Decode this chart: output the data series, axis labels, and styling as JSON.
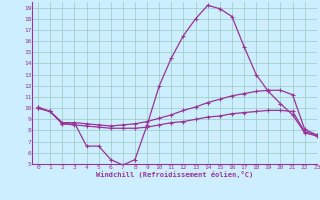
{
  "line1_x": [
    0,
    1,
    2,
    3,
    4,
    5,
    6,
    7,
    8,
    9,
    10,
    11,
    12,
    13,
    14,
    15,
    16,
    17,
    18,
    19,
    20,
    21,
    22,
    23
  ],
  "line1_y": [
    10.1,
    9.7,
    8.7,
    8.7,
    6.6,
    6.6,
    5.4,
    4.9,
    5.4,
    8.5,
    12.0,
    14.5,
    16.5,
    18.0,
    19.2,
    18.9,
    18.2,
    15.5,
    13.0,
    11.5,
    10.4,
    9.4,
    7.8,
    7.5
  ],
  "line2_x": [
    0,
    1,
    2,
    3,
    4,
    5,
    6,
    7,
    8,
    9,
    10,
    11,
    12,
    13,
    14,
    15,
    16,
    17,
    18,
    19,
    20,
    21,
    22,
    23
  ],
  "line2_y": [
    10.0,
    9.7,
    8.6,
    8.7,
    8.6,
    8.5,
    8.4,
    8.5,
    8.6,
    8.8,
    9.1,
    9.4,
    9.8,
    10.1,
    10.5,
    10.8,
    11.1,
    11.3,
    11.5,
    11.6,
    11.6,
    11.2,
    8.1,
    7.6
  ],
  "line3_x": [
    0,
    1,
    2,
    3,
    4,
    5,
    6,
    7,
    8,
    9,
    10,
    11,
    12,
    13,
    14,
    15,
    16,
    17,
    18,
    19,
    20,
    21,
    22,
    23
  ],
  "line3_y": [
    10.0,
    9.7,
    8.6,
    8.5,
    8.4,
    8.3,
    8.2,
    8.2,
    8.2,
    8.3,
    8.5,
    8.7,
    8.8,
    9.0,
    9.2,
    9.3,
    9.5,
    9.6,
    9.7,
    9.8,
    9.8,
    9.7,
    7.9,
    7.6
  ],
  "color": "#993399",
  "bg_color": "#cceeff",
  "xlabel": "Windchill (Refroidissement éolien,°C)",
  "ylim": [
    5,
    19.5
  ],
  "xlim": [
    -0.5,
    23
  ],
  "yticks": [
    5,
    6,
    7,
    8,
    9,
    10,
    11,
    12,
    13,
    14,
    15,
    16,
    17,
    18,
    19
  ],
  "xticks": [
    0,
    1,
    2,
    3,
    4,
    5,
    6,
    7,
    8,
    9,
    10,
    11,
    12,
    13,
    14,
    15,
    16,
    17,
    18,
    19,
    20,
    21,
    22,
    23
  ],
  "grid_color": "#99ccbb",
  "marker": "+"
}
